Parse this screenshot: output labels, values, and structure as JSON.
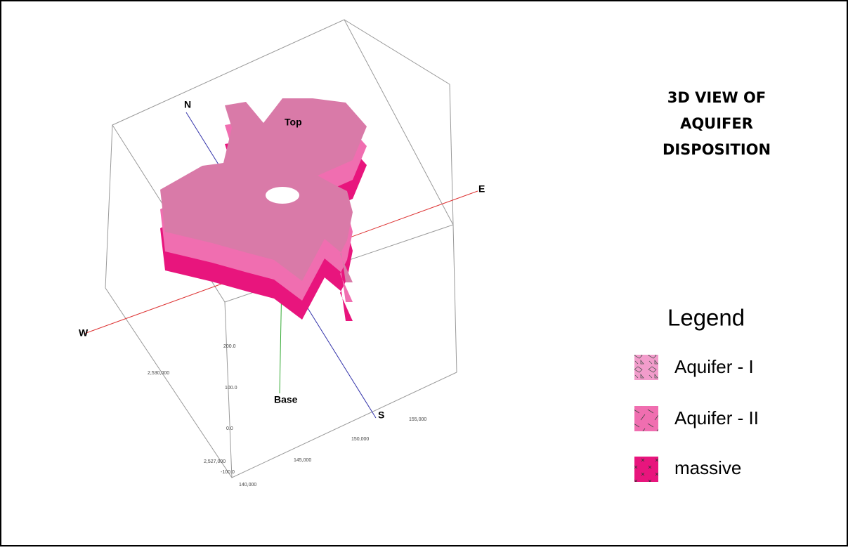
{
  "title_lines": [
    "3D VIEW OF",
    "AQUIFER",
    "DISPOSITION"
  ],
  "axes": {
    "north": "N",
    "south": "S",
    "east": "E",
    "west": "W",
    "top": "Top",
    "base": "Base"
  },
  "tick_labels": {
    "elevation": [
      "200.0",
      "100.0",
      "0.0",
      "-100.0"
    ],
    "northing": [
      "2,530,000",
      "2,527,000"
    ],
    "easting": [
      "140,000",
      "145,000",
      "150,000",
      "155,000"
    ]
  },
  "legend": {
    "title": "Legend",
    "items": [
      "Aquifer - I",
      "Aquifer - II",
      "massive"
    ]
  }
}
